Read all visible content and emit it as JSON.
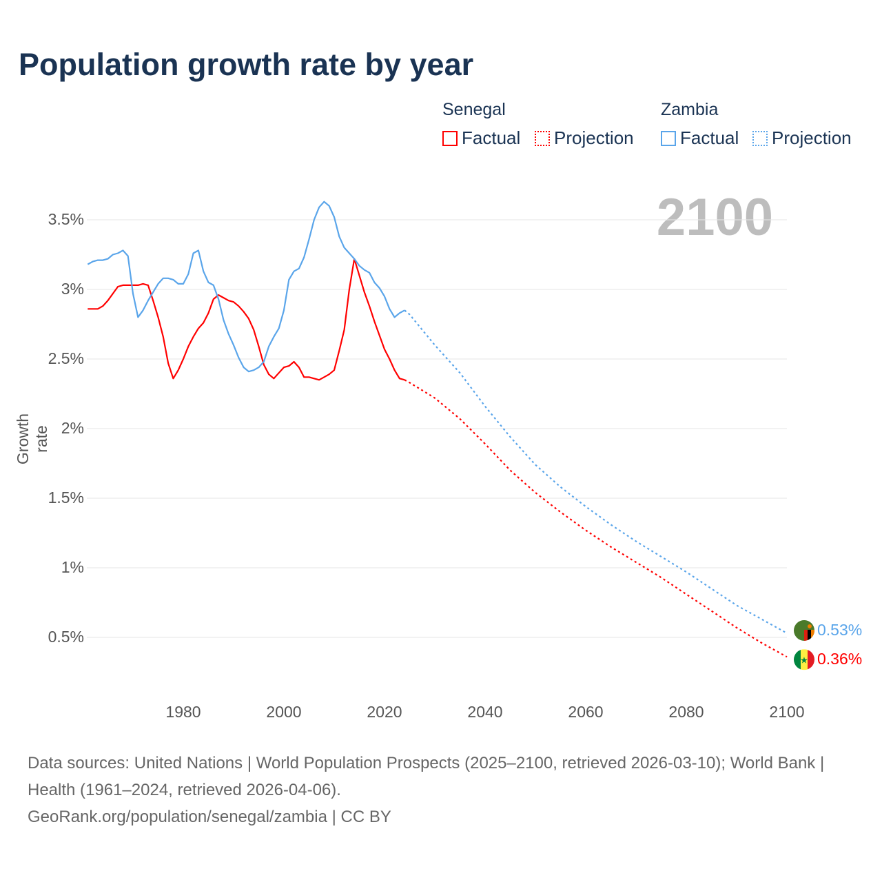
{
  "chart_data": {
    "type": "line",
    "title": "Population growth rate by year",
    "ylabel": "Growth rate",
    "xlabel": "",
    "current_year": "2100",
    "xlim": [
      1961,
      2100
    ],
    "ylim": [
      0,
      3.8
    ],
    "x_ticks": [
      "1980",
      "2000",
      "2020",
      "2040",
      "2060",
      "2080",
      "2100"
    ],
    "x_tick_values": [
      1980,
      2000,
      2020,
      2040,
      2060,
      2080,
      2100
    ],
    "y_ticks": [
      "0.5%",
      "1%",
      "1.5%",
      "2%",
      "2.5%",
      "3%",
      "3.5%"
    ],
    "y_tick_values": [
      0.5,
      1,
      1.5,
      2,
      2.5,
      3,
      3.5
    ],
    "grid": true,
    "legend": {
      "position": "top-right",
      "groups": [
        {
          "country": "Senegal",
          "factual": "Factual",
          "projection": "Projection"
        },
        {
          "country": "Zambia",
          "factual": "Factual",
          "projection": "Projection"
        }
      ]
    },
    "series": [
      {
        "name": "Senegal",
        "color": "#ff0000",
        "end_label": "0.36%",
        "flag": "senegal-flag",
        "factual": {
          "start_year": 1961,
          "values": [
            2.86,
            2.86,
            2.86,
            2.88,
            2.92,
            2.97,
            3.02,
            3.03,
            3.03,
            3.03,
            3.03,
            3.04,
            3.03,
            2.92,
            2.8,
            2.66,
            2.47,
            2.36,
            2.42,
            2.5,
            2.59,
            2.66,
            2.72,
            2.76,
            2.83,
            2.93,
            2.96,
            2.94,
            2.92,
            2.91,
            2.88,
            2.84,
            2.79,
            2.71,
            2.59,
            2.46,
            2.39,
            2.36,
            2.4,
            2.44,
            2.45,
            2.48,
            2.44,
            2.37,
            2.37,
            2.36,
            2.35,
            2.37,
            2.39,
            2.42,
            2.56,
            2.71,
            3.0,
            3.22,
            3.1,
            2.98,
            2.88,
            2.77,
            2.67,
            2.57,
            2.5,
            2.42,
            2.36,
            2.35
          ]
        },
        "projection": {
          "years": [
            2024,
            2025,
            2030,
            2035,
            2040,
            2045,
            2050,
            2055,
            2060,
            2065,
            2070,
            2075,
            2080,
            2085,
            2090,
            2095,
            2100
          ],
          "values": [
            2.35,
            2.33,
            2.22,
            2.07,
            1.89,
            1.7,
            1.54,
            1.4,
            1.27,
            1.15,
            1.04,
            0.93,
            0.81,
            0.69,
            0.57,
            0.46,
            0.36
          ]
        }
      },
      {
        "name": "Zambia",
        "color": "#5aa5ea",
        "end_label": "0.53%",
        "flag": "zambia-flag",
        "factual": {
          "start_year": 1961,
          "values": [
            3.18,
            3.2,
            3.21,
            3.21,
            3.22,
            3.25,
            3.26,
            3.28,
            3.24,
            2.97,
            2.8,
            2.85,
            2.92,
            2.98,
            3.04,
            3.08,
            3.08,
            3.07,
            3.04,
            3.04,
            3.11,
            3.26,
            3.28,
            3.13,
            3.05,
            3.03,
            2.93,
            2.78,
            2.68,
            2.6,
            2.51,
            2.44,
            2.41,
            2.42,
            2.44,
            2.48,
            2.59,
            2.66,
            2.72,
            2.85,
            3.07,
            3.13,
            3.15,
            3.23,
            3.36,
            3.5,
            3.59,
            3.63,
            3.6,
            3.52,
            3.38,
            3.3,
            3.26,
            3.22,
            3.17,
            3.14,
            3.12,
            3.05,
            3.01,
            2.95,
            2.86,
            2.8,
            2.83,
            2.85
          ]
        },
        "projection": {
          "years": [
            2024,
            2025,
            2030,
            2035,
            2040,
            2045,
            2050,
            2055,
            2060,
            2065,
            2070,
            2075,
            2080,
            2085,
            2090,
            2095,
            2100
          ],
          "values": [
            2.85,
            2.82,
            2.6,
            2.4,
            2.16,
            1.94,
            1.74,
            1.58,
            1.44,
            1.31,
            1.19,
            1.08,
            0.97,
            0.85,
            0.73,
            0.63,
            0.53
          ]
        }
      }
    ]
  },
  "footer": {
    "sources": "Data sources: United Nations | World Population Prospects (2025–2100, retrieved 2026-03-10); World Bank | Health (1961–2024, retrieved 2026-04-06).",
    "credit": "GeoRank.org/population/senegal/zambia | CC BY"
  }
}
